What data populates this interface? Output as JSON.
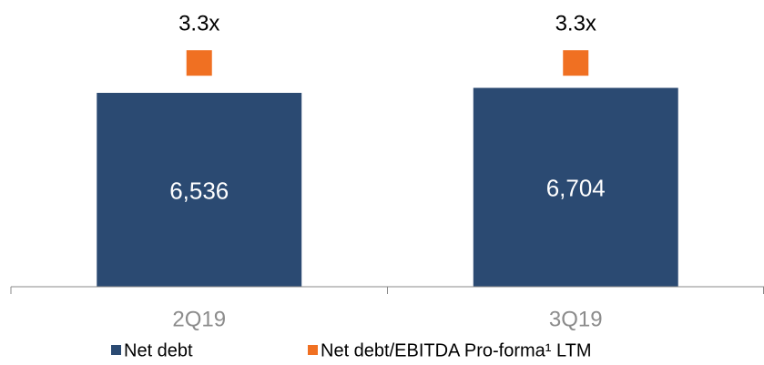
{
  "chart_data": {
    "type": "bar",
    "categories": [
      "2Q19",
      "3Q19"
    ],
    "series": [
      {
        "name": "Net debt",
        "color": "#2b4a72",
        "values": [
          6536,
          6704
        ],
        "value_labels": [
          "6,536",
          "6,704"
        ]
      },
      {
        "name": "Net debt/EBITDA Pro-forma¹ LTM",
        "color": "#f07022",
        "values": [
          3.3,
          3.3
        ],
        "value_labels": [
          "3.3x",
          "3.3x"
        ],
        "axis": "y2"
      }
    ],
    "ylim": [
      0,
      8000
    ],
    "y2lim": [
      0,
      3.5
    ],
    "legend": "bottom"
  }
}
